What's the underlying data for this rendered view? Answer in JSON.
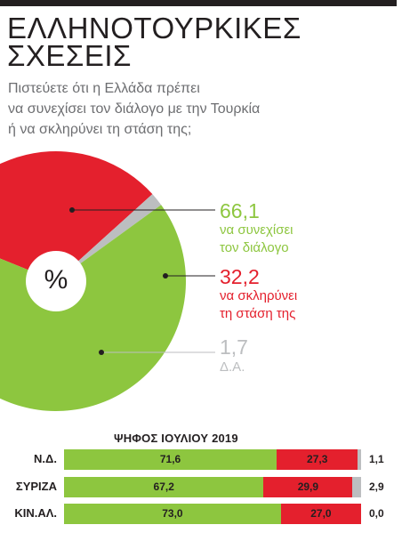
{
  "header": {
    "title_line1": "ΕΛΛΗΝΟΤΟΥΡΚΙΚΕΣ",
    "title_line2": "ΣΧΕΣΕΙΣ",
    "question_line1": "Πιστεύετε ότι η Ελλάδα πρέπει",
    "question_line2": "να συνεχίσει τον διάλογο με την Τουρκία",
    "question_line3": "ή να σκληρύνει τη στάση της;"
  },
  "colors": {
    "green": "#8dc63f",
    "red": "#e4202d",
    "gray": "#bcbec0",
    "text": "#231f20"
  },
  "chart_data": [
    {
      "type": "pie",
      "unit_symbol": "%",
      "slices": [
        {
          "value": 66.1,
          "value_label": "66,1",
          "label_line1": "να συνεχίσει",
          "label_line2": "τον διάλογο",
          "color": "#8dc63f"
        },
        {
          "value": 32.2,
          "value_label": "32,2",
          "label_line1": "να σκληρύνει",
          "label_line2": "τη στάση της",
          "color": "#e4202d"
        },
        {
          "value": 1.7,
          "value_label": "1,7",
          "label_line1": "Δ.Α.",
          "label_line2": "",
          "color": "#bcbec0"
        }
      ]
    },
    {
      "type": "bar",
      "stacked": true,
      "orientation": "horizontal",
      "title": "ΨΗΦΟΣ ΙΟΥΛΙΟΥ 2019",
      "categories": [
        "Ν.Δ.",
        "ΣΥΡΙΖΑ",
        "ΚΙΝ.ΑΛ."
      ],
      "series": [
        {
          "values": [
            71.6,
            67.2,
            73.0
          ],
          "labels": [
            "71,6",
            "67,2",
            "73,0"
          ],
          "color": "#8dc63f"
        },
        {
          "values": [
            27.3,
            29.9,
            27.0
          ],
          "labels": [
            "27,3",
            "29,9",
            "27,0"
          ],
          "color": "#e4202d"
        },
        {
          "values": [
            1.1,
            2.9,
            0.0
          ],
          "labels": [
            "1,1",
            "2,9",
            "0,0"
          ],
          "color": "#bcbec0"
        }
      ]
    }
  ]
}
